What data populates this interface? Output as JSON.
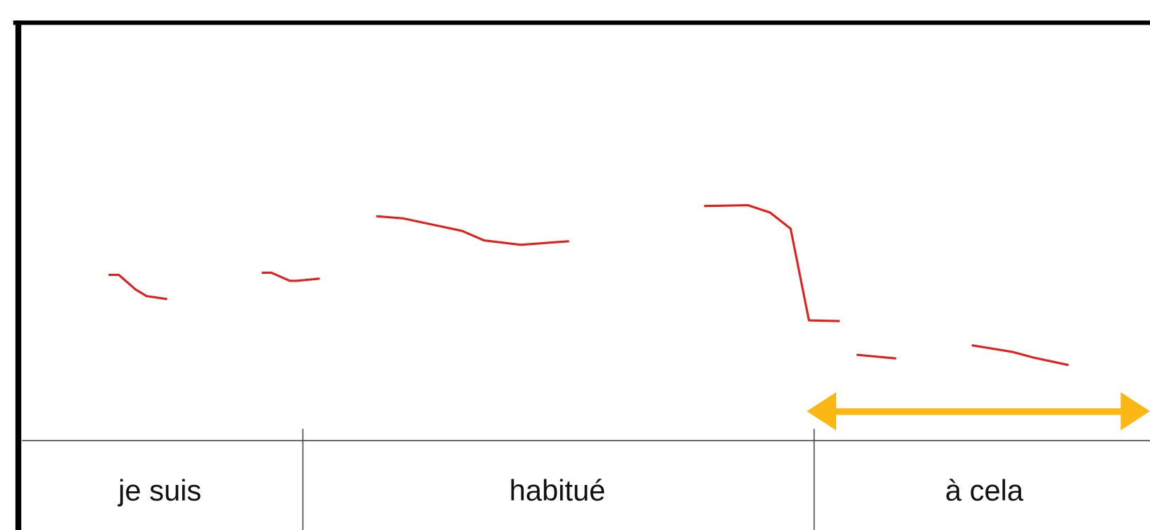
{
  "tiers": {
    "words": [
      "je suis",
      "habitué",
      "à cela"
    ]
  }
}
